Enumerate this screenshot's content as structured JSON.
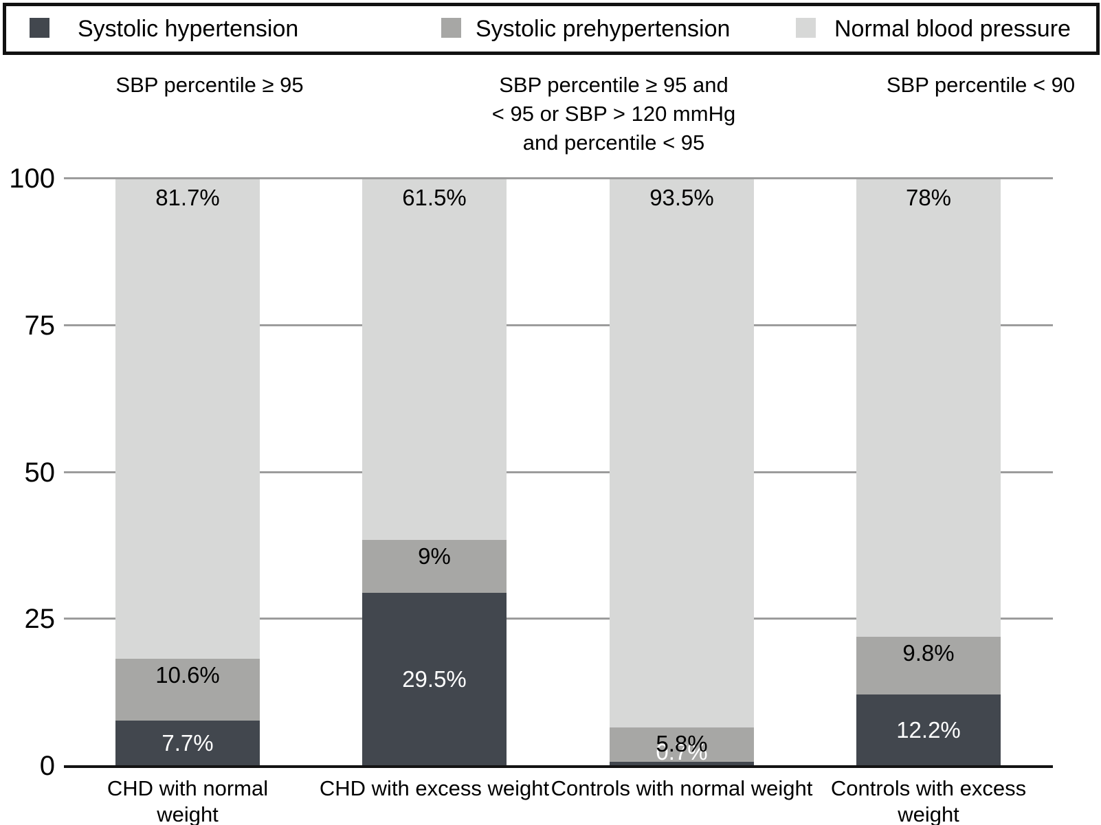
{
  "legend": {
    "items": [
      {
        "label": "Systolic hypertension",
        "color": "#42474e"
      },
      {
        "label": "Systolic prehypertension",
        "color": "#a7a7a5"
      },
      {
        "label": "Normal blood pressure",
        "color": "#d7d8d7"
      }
    ]
  },
  "column_headers": [
    {
      "lines": [
        "SBP percentile ≥ 95"
      ]
    },
    {
      "lines": [
        "SBP percentile ≥ 95 and",
        "< 95 or SBP > 120 mmHg",
        "and percentile < 95"
      ]
    },
    {
      "lines": [
        "SBP percentile < 90"
      ]
    }
  ],
  "chart_data": {
    "type": "bar",
    "stacked": true,
    "title": "",
    "xlabel": "",
    "ylabel": "",
    "ylim": [
      0,
      100
    ],
    "yticks": [
      "0",
      "25",
      "50",
      "75",
      "100"
    ],
    "ytick_values": [
      0,
      25,
      50,
      75,
      100
    ],
    "grid": true,
    "legend_position": "top",
    "categories": [
      "CHD with normal weight",
      "CHD with excess weight",
      "Controls with normal weight",
      "Controls with excess weight"
    ],
    "category_lines": [
      [
        "CHD with normal",
        "weight"
      ],
      [
        "CHD with excess weight"
      ],
      [
        "Controls with normal weight"
      ],
      [
        "Controls with excess",
        "weight"
      ]
    ],
    "series": [
      {
        "name": "Systolic hypertension",
        "color": "#42474e",
        "label_color": "#ffffff",
        "values": [
          7.7,
          29.5,
          0.7,
          12.2
        ],
        "labels": [
          "7.7%",
          "29.5%",
          "0.7%",
          "12.2%"
        ]
      },
      {
        "name": "Systolic prehypertension",
        "color": "#a7a7a5",
        "label_color": "#000000",
        "values": [
          10.6,
          9,
          5.8,
          9.8
        ],
        "labels": [
          "10.6%",
          "9%",
          "5.8%",
          "9.8%"
        ]
      },
      {
        "name": "Normal blood pressure",
        "color": "#d7d8d7",
        "label_color": "#000000",
        "values": [
          81.7,
          61.5,
          93.5,
          78
        ],
        "labels": [
          "81.7%",
          "61.5%",
          "93.5%",
          "78%"
        ]
      }
    ],
    "colors": {
      "gridline": "#9c9c9c",
      "axis": "#141414",
      "background": "#ffffff"
    }
  }
}
